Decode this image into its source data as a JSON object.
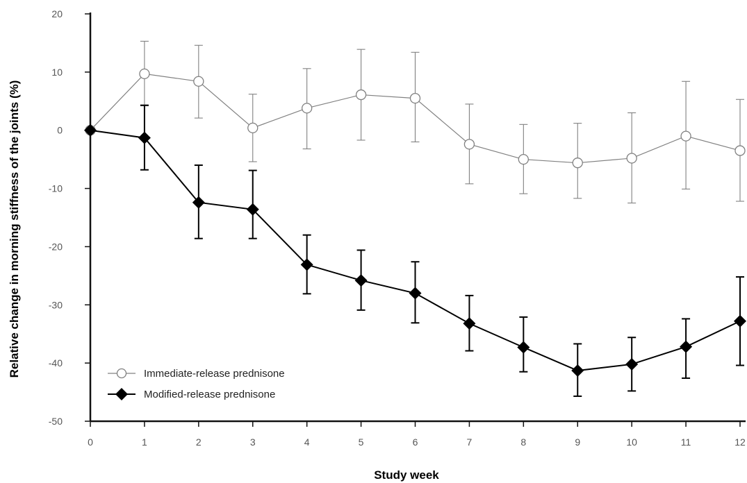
{
  "chart_data": {
    "type": "line",
    "title": "",
    "xlabel": "Study week",
    "ylabel": "Relative change in morning stiffness of the joints (%)",
    "x": [
      0,
      1,
      2,
      3,
      4,
      5,
      6,
      7,
      8,
      9,
      10,
      11,
      12
    ],
    "xlim": [
      0,
      12
    ],
    "ylim": [
      -50,
      20
    ],
    "x_ticks": [
      "0",
      "1",
      "2",
      "3",
      "4",
      "5",
      "6",
      "7",
      "8",
      "9",
      "10",
      "11",
      "12"
    ],
    "y_ticks": [
      "20",
      "10",
      "0",
      "-10",
      "-20",
      "-30",
      "-40",
      "-50"
    ],
    "grid": false,
    "legend_position": "bottom-left",
    "series": [
      {
        "name": "Immediate-release prednisone",
        "marker": "open-circle",
        "color": "#808080",
        "values": [
          0,
          9.7,
          8.4,
          0.4,
          3.8,
          6.1,
          5.5,
          -2.4,
          -5.0,
          -5.6,
          -4.8,
          -1.0,
          -3.5
        ],
        "error_low": [
          0,
          4.2,
          2.1,
          -5.4,
          -3.2,
          -1.7,
          -2.0,
          -9.2,
          -10.9,
          -11.7,
          -12.5,
          -10.1,
          -12.2
        ],
        "error_high": [
          0,
          15.3,
          14.6,
          6.2,
          10.6,
          13.9,
          13.4,
          4.5,
          1.0,
          1.2,
          3.0,
          8.4,
          5.3
        ]
      },
      {
        "name": "Modified-release prednisone",
        "marker": "filled-diamond",
        "color": "#000000",
        "values": [
          0,
          -1.3,
          -12.4,
          -13.6,
          -23.1,
          -25.8,
          -28.0,
          -33.2,
          -37.3,
          -41.3,
          -40.2,
          -37.2,
          -32.8
        ],
        "error_low": [
          0,
          -6.8,
          -18.6,
          -18.6,
          -28.1,
          -30.9,
          -33.1,
          -37.9,
          -41.5,
          -45.7,
          -44.8,
          -42.6,
          -40.4
        ],
        "error_high": [
          0,
          4.3,
          -6.0,
          -6.9,
          -18.0,
          -20.6,
          -22.6,
          -28.4,
          -32.1,
          -36.7,
          -35.6,
          -32.4,
          -25.2
        ]
      }
    ]
  }
}
